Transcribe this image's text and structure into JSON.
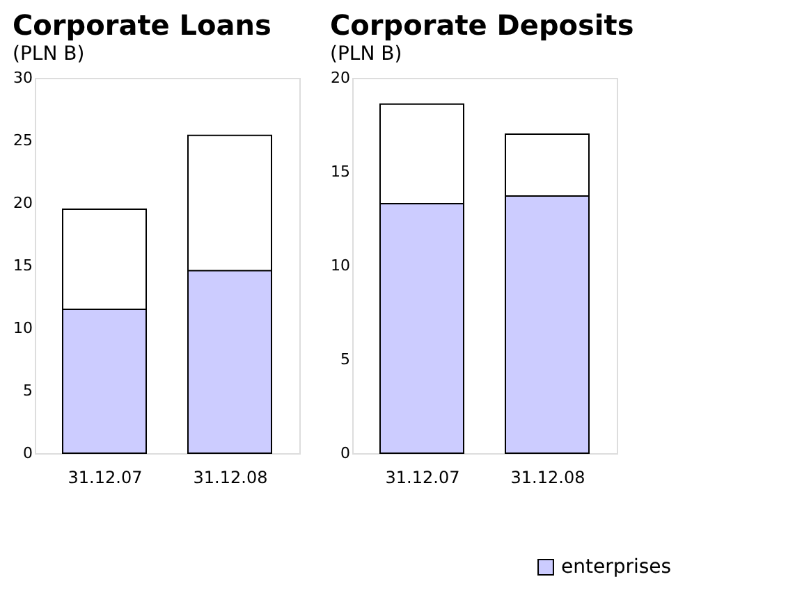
{
  "chart_data": [
    {
      "type": "bar",
      "title": "Corporate Loans",
      "subtitle": "(PLN B)",
      "categories": [
        "31.12.07",
        "31.12.08"
      ],
      "stacked": true,
      "series": [
        {
          "name": "enterprises",
          "color": "#ccccff",
          "values": [
            11.5,
            14.6
          ]
        },
        {
          "color": "#ffffff",
          "values": [
            8.0,
            10.8
          ]
        }
      ],
      "ylim": [
        0,
        30
      ],
      "yticks": [
        0,
        5,
        10,
        15,
        20,
        25,
        30
      ],
      "grid": false,
      "legend": "bottom right"
    },
    {
      "type": "bar",
      "title": "Corporate Deposits",
      "subtitle": "(PLN B)",
      "categories": [
        "31.12.07",
        "31.12.08"
      ],
      "stacked": true,
      "series": [
        {
          "name": "enterprises",
          "color": "#ccccff",
          "values": [
            13.3,
            13.7
          ]
        },
        {
          "color": "#ffffff",
          "values": [
            5.3,
            3.3
          ]
        }
      ],
      "ylim": [
        0,
        20
      ],
      "yticks": [
        0,
        5,
        10,
        15,
        20
      ],
      "grid": false,
      "legend": "bottom right"
    }
  ]
}
